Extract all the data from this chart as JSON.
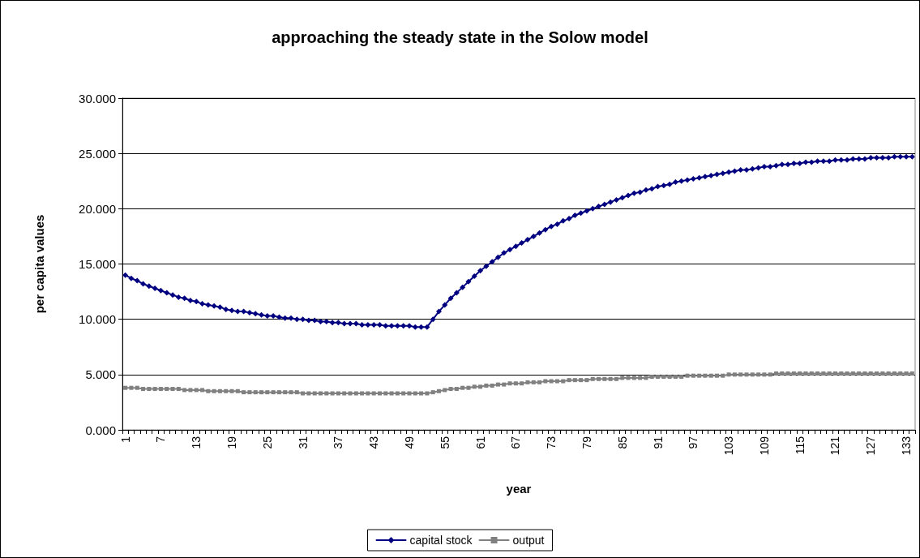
{
  "chart_data": {
    "type": "line",
    "title": "approaching the steady state in the Solow model",
    "xlabel": "year",
    "ylabel": "per capita values",
    "categories": [
      "1",
      null,
      null,
      null,
      null,
      null,
      "7",
      null,
      null,
      null,
      null,
      null,
      "13",
      null,
      null,
      null,
      null,
      null,
      "19",
      null,
      null,
      null,
      null,
      null,
      "25",
      null,
      null,
      null,
      null,
      null,
      "31",
      null,
      null,
      null,
      null,
      null,
      "37",
      null,
      null,
      null,
      null,
      null,
      "43",
      null,
      null,
      null,
      null,
      null,
      "49",
      null,
      null,
      null,
      null,
      null,
      "55",
      null,
      null,
      null,
      null,
      null,
      "61",
      null,
      null,
      null,
      null,
      null,
      "67",
      null,
      null,
      null,
      null,
      null,
      "73",
      null,
      null,
      null,
      null,
      null,
      "79",
      null,
      null,
      null,
      null,
      null,
      "85",
      null,
      null,
      null,
      null,
      null,
      "91",
      null,
      null,
      null,
      null,
      null,
      "97",
      null,
      null,
      null,
      null,
      null,
      "103",
      null,
      null,
      null,
      null,
      null,
      "109",
      null,
      null,
      null,
      null,
      null,
      "115",
      null,
      null,
      null,
      null,
      null,
      "121",
      null,
      null,
      null,
      null,
      null,
      "127",
      null,
      null,
      null,
      null,
      null,
      "133",
      null
    ],
    "series": [
      {
        "name": "capital stock",
        "color": "#000080",
        "marker": "diamond",
        "values": [
          14.0,
          13.7,
          13.5,
          13.2,
          13.0,
          12.8,
          12.6,
          12.4,
          12.2,
          12.0,
          11.9,
          11.7,
          11.6,
          11.4,
          11.3,
          11.2,
          11.1,
          10.9,
          10.8,
          10.7,
          10.7,
          10.6,
          10.5,
          10.4,
          10.3,
          10.3,
          10.2,
          10.1,
          10.1,
          10.0,
          10.0,
          9.9,
          9.9,
          9.8,
          9.8,
          9.7,
          9.7,
          9.6,
          9.6,
          9.6,
          9.5,
          9.5,
          9.5,
          9.5,
          9.4,
          9.4,
          9.4,
          9.4,
          9.4,
          9.3,
          9.3,
          9.3,
          10.0,
          10.7,
          11.3,
          11.9,
          12.4,
          12.9,
          13.4,
          13.9,
          14.4,
          14.8,
          15.2,
          15.6,
          16.0,
          16.3,
          16.6,
          16.9,
          17.2,
          17.5,
          17.8,
          18.1,
          18.4,
          18.6,
          18.9,
          19.1,
          19.4,
          19.6,
          19.8,
          20.0,
          20.2,
          20.4,
          20.6,
          20.8,
          21.0,
          21.2,
          21.4,
          21.5,
          21.7,
          21.8,
          22.0,
          22.1,
          22.2,
          22.4,
          22.5,
          22.6,
          22.7,
          22.8,
          22.9,
          23.0,
          23.1,
          23.2,
          23.3,
          23.4,
          23.5,
          23.5,
          23.6,
          23.7,
          23.8,
          23.8,
          23.9,
          24.0,
          24.0,
          24.1,
          24.1,
          24.2,
          24.2,
          24.3,
          24.3,
          24.3,
          24.4,
          24.4,
          24.4,
          24.5,
          24.5,
          24.5,
          24.6,
          24.6,
          24.6,
          24.6,
          24.7,
          24.7,
          24.7,
          24.7
        ]
      },
      {
        "name": "output",
        "color": "#808080",
        "marker": "square",
        "values": [
          3.8,
          3.8,
          3.8,
          3.7,
          3.7,
          3.7,
          3.7,
          3.7,
          3.7,
          3.7,
          3.6,
          3.6,
          3.6,
          3.6,
          3.5,
          3.5,
          3.5,
          3.5,
          3.5,
          3.5,
          3.4,
          3.4,
          3.4,
          3.4,
          3.4,
          3.4,
          3.4,
          3.4,
          3.4,
          3.4,
          3.3,
          3.3,
          3.3,
          3.3,
          3.3,
          3.3,
          3.3,
          3.3,
          3.3,
          3.3,
          3.3,
          3.3,
          3.3,
          3.3,
          3.3,
          3.3,
          3.3,
          3.3,
          3.3,
          3.3,
          3.3,
          3.3,
          3.4,
          3.5,
          3.6,
          3.7,
          3.7,
          3.8,
          3.8,
          3.9,
          3.9,
          4.0,
          4.0,
          4.1,
          4.1,
          4.2,
          4.2,
          4.2,
          4.3,
          4.3,
          4.3,
          4.4,
          4.4,
          4.4,
          4.4,
          4.5,
          4.5,
          4.5,
          4.5,
          4.6,
          4.6,
          4.6,
          4.6,
          4.6,
          4.7,
          4.7,
          4.7,
          4.7,
          4.7,
          4.8,
          4.8,
          4.8,
          4.8,
          4.8,
          4.8,
          4.9,
          4.9,
          4.9,
          4.9,
          4.9,
          4.9,
          4.9,
          5.0,
          5.0,
          5.0,
          5.0,
          5.0,
          5.0,
          5.0,
          5.0,
          5.1,
          5.1,
          5.1,
          5.1,
          5.1,
          5.1,
          5.1,
          5.1,
          5.1,
          5.1,
          5.1,
          5.1,
          5.1,
          5.1,
          5.1,
          5.1,
          5.1,
          5.1,
          5.1,
          5.1,
          5.1,
          5.1,
          5.1,
          5.1
        ]
      }
    ],
    "ylim": [
      0,
      30
    ],
    "yticks": [
      {
        "value": 0,
        "label": "0.000"
      },
      {
        "value": 5,
        "label": "5.000"
      },
      {
        "value": 10,
        "label": "10.000"
      },
      {
        "value": 15,
        "label": "15.000"
      },
      {
        "value": 20,
        "label": "20.000"
      },
      {
        "value": 25,
        "label": "25.000"
      },
      {
        "value": 30,
        "label": "30.000"
      }
    ],
    "grid": "y",
    "legend": "bottom",
    "line_style": "solid"
  }
}
